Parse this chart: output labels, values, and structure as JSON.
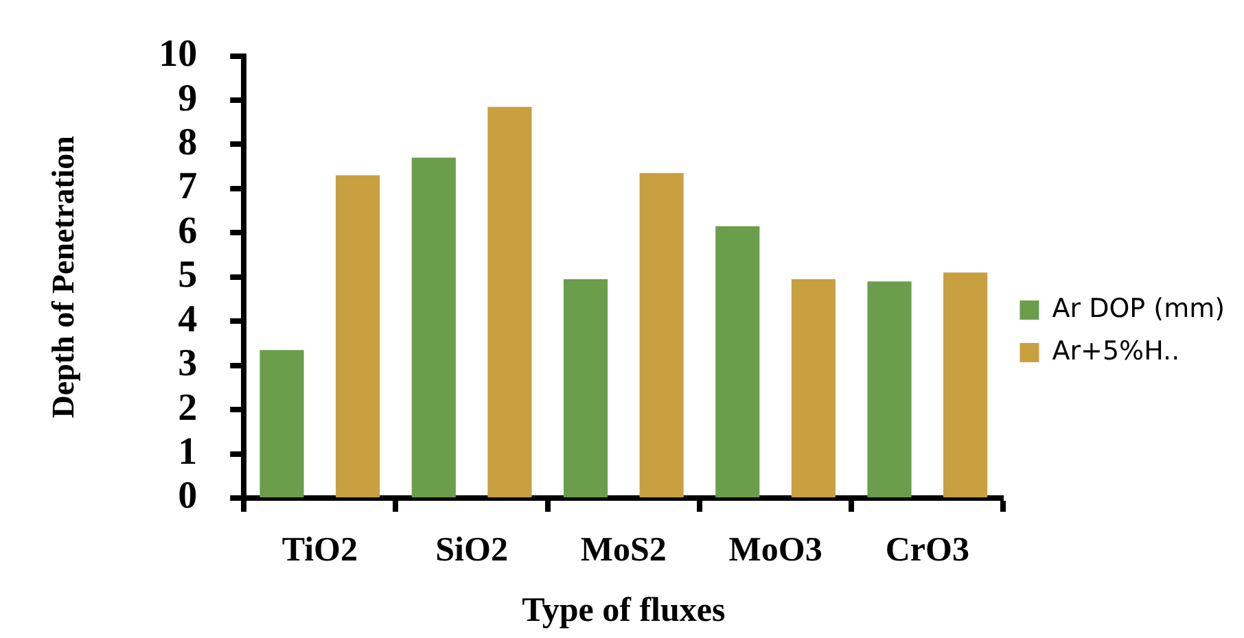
{
  "chart_data": {
    "type": "bar",
    "xlabel": "Type of fluxes",
    "ylabel": "Depth of Penetration",
    "categories": [
      "TiO2",
      "SiO2",
      "MoS2",
      "MoO3",
      "CrO3"
    ],
    "series": [
      {
        "name": "Ar DOP (mm)",
        "color": "#6a9e4a",
        "values": [
          3.35,
          7.7,
          4.95,
          6.15,
          4.9
        ]
      },
      {
        "name": "Ar+5%H..",
        "color": "#c9a040",
        "values": [
          7.3,
          8.85,
          7.35,
          4.95,
          5.1
        ]
      }
    ],
    "ylim": [
      0,
      10
    ],
    "yticks": [
      0,
      1,
      2,
      3,
      4,
      5,
      6,
      7,
      8,
      9,
      10
    ],
    "grid": false,
    "legend": "right"
  }
}
